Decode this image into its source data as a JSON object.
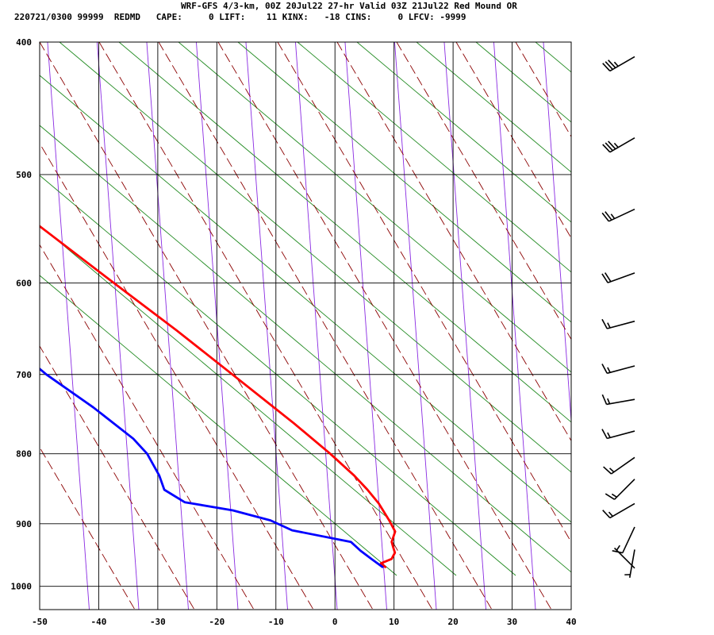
{
  "header": {
    "line1": "WRF-GFS 4/3-km, 00Z 20Jul22 27-hr Valid 03Z 21Jul22 Red Mound OR",
    "line2": "220721/0300 99999  REDMD   CAPE:     0 LIFT:    11 KINX:   -18 CINS:     0 LFCV: -9999"
  },
  "colors": {
    "temperature": "#ff0000",
    "dewpoint": "#0000ff",
    "isotherm_grid": "#000000",
    "dry_adiabat": "#8b0000",
    "moist_adiabat": "#228b22",
    "mixing_ratio": "#8a2be2",
    "wind_barb": "#000000"
  },
  "chart_data": {
    "type": "line",
    "chart_kind": "skew-T log-P sounding",
    "title": "",
    "xlabel": "",
    "ylabel": "",
    "x_range": [
      -50,
      40
    ],
    "y_range_hpa": [
      1040,
      400
    ],
    "y_scale": "log",
    "grid": true,
    "x_ticks": [
      -50,
      -40,
      -30,
      -20,
      -10,
      0,
      10,
      20,
      30,
      40
    ],
    "y_ticks": [
      400,
      500,
      600,
      700,
      800,
      900,
      1000
    ],
    "series": [
      {
        "key": "temperature",
        "points": [
          {
            "p": 968,
            "t": 13.5
          },
          {
            "p": 962,
            "t": 13.2
          },
          {
            "p": 955,
            "t": 15.5
          },
          {
            "p": 945,
            "t": 16.8
          },
          {
            "p": 935,
            "t": 17.2
          },
          {
            "p": 928,
            "t": 17.5
          },
          {
            "p": 912,
            "t": 19.3
          },
          {
            "p": 895,
            "t": 19.6
          },
          {
            "p": 870,
            "t": 19.8
          },
          {
            "p": 850,
            "t": 19.5
          },
          {
            "p": 830,
            "t": 18.9
          },
          {
            "p": 800,
            "t": 17.4
          },
          {
            "p": 760,
            "t": 14.8
          },
          {
            "p": 700,
            "t": 10.1
          },
          {
            "p": 650,
            "t": 5.8
          },
          {
            "p": 600,
            "t": 0.7
          },
          {
            "p": 550,
            "t": -4.7
          },
          {
            "p": 500,
            "t": -10.7
          },
          {
            "p": 460,
            "t": -14.5
          },
          {
            "p": 430,
            "t": -17.8
          },
          {
            "p": 405,
            "t": -19.8
          }
        ]
      },
      {
        "key": "dewpoint",
        "points": [
          {
            "p": 968,
            "t": 13.0
          },
          {
            "p": 955,
            "t": 12.1
          },
          {
            "p": 942,
            "t": 11.2
          },
          {
            "p": 928,
            "t": 10.6
          },
          {
            "p": 910,
            "t": 2.0
          },
          {
            "p": 895,
            "t": -0.5
          },
          {
            "p": 880,
            "t": -5.7
          },
          {
            "p": 868,
            "t": -12.9
          },
          {
            "p": 850,
            "t": -14.9
          },
          {
            "p": 830,
            "t": -14.1
          },
          {
            "p": 800,
            "t": -13.6
          },
          {
            "p": 780,
            "t": -14.2
          },
          {
            "p": 740,
            "t": -17.3
          },
          {
            "p": 700,
            "t": -21.4
          },
          {
            "p": 650,
            "t": -25.2
          },
          {
            "p": 600,
            "t": -29.1
          },
          {
            "p": 570,
            "t": -31.8
          },
          {
            "p": 520,
            "t": -34.1
          },
          {
            "p": 500,
            "t": -36.5
          },
          {
            "p": 465,
            "t": -39.8
          },
          {
            "p": 445,
            "t": -40.3
          },
          {
            "p": 405,
            "t": -42.1
          }
        ]
      }
    ],
    "wind_barbs": [
      {
        "p": 410,
        "dir": 240,
        "speed_kt": 35
      },
      {
        "p": 470,
        "dir": 240,
        "speed_kt": 35
      },
      {
        "p": 530,
        "dir": 245,
        "speed_kt": 25
      },
      {
        "p": 590,
        "dir": 250,
        "speed_kt": 20
      },
      {
        "p": 640,
        "dir": 255,
        "speed_kt": 15
      },
      {
        "p": 690,
        "dir": 255,
        "speed_kt": 15
      },
      {
        "p": 730,
        "dir": 260,
        "speed_kt": 15
      },
      {
        "p": 770,
        "dir": 255,
        "speed_kt": 15
      },
      {
        "p": 805,
        "dir": 235,
        "speed_kt": 15
      },
      {
        "p": 835,
        "dir": 225,
        "speed_kt": 15
      },
      {
        "p": 870,
        "dir": 240,
        "speed_kt": 15
      },
      {
        "p": 905,
        "dir": 205,
        "speed_kt": 10
      },
      {
        "p": 940,
        "dir": 190,
        "speed_kt": 5
      },
      {
        "p": 970,
        "dir": 315,
        "speed_kt": 5
      }
    ]
  }
}
